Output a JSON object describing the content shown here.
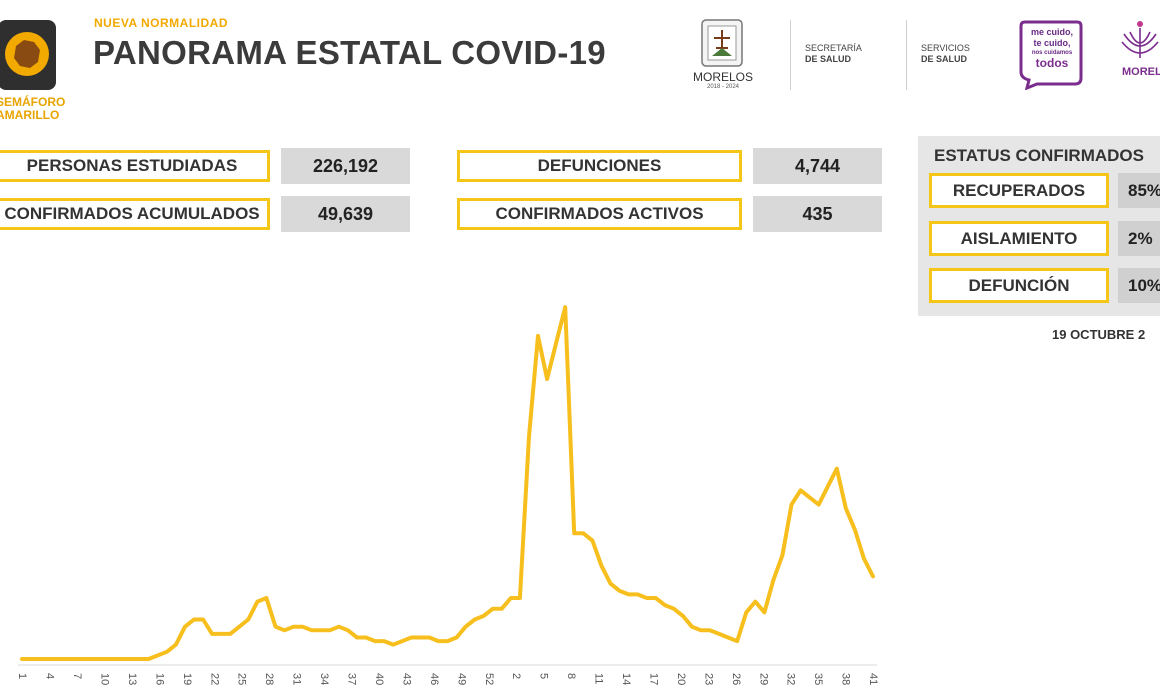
{
  "header": {
    "subtitle": "NUEVA NORMALIDAD",
    "title": "PANORAMA ESTATAL COVID-19"
  },
  "semaforo": {
    "line1": "SEMÁFORO",
    "line2": "AMARILLO",
    "color": "#f2a900"
  },
  "logos": {
    "morelos_name": "MORELOS",
    "morelos_years": "2018 - 2024",
    "secretaria_line1": "SECRETARÍA",
    "secretaria_line2": "DE SALUD",
    "servicios_line1": "SERVICIOS",
    "servicios_line2": "DE SALUD",
    "campaign_line1": "me cuido,",
    "campaign_line2": "te cuido,",
    "campaign_line3": "nos cuidamos",
    "campaign_line4": "todos",
    "morelos2_name": "MORELO"
  },
  "kpis": {
    "personas_estudiadas_label": "PERSONAS ESTUDIADAS",
    "personas_estudiadas_value": "226,192",
    "confirmados_acumulados_label": "CONFIRMADOS ACUMULADOS",
    "confirmados_acumulados_value": "49,639",
    "defunciones_label": "DEFUNCIONES",
    "defunciones_value": "4,744",
    "confirmados_activos_label": "CONFIRMADOS ACTIVOS",
    "confirmados_activos_value": "435"
  },
  "status": {
    "title": "ESTATUS CONFIRMADOS",
    "recuperados_label": "RECUPERADOS",
    "recuperados_value": "85%",
    "aislamiento_label": "AISLAMIENTO",
    "aislamiento_value": "2%",
    "defuncion_label": "DEFUNCIÓN",
    "defuncion_value": "10%"
  },
  "date": "19 OCTUBRE 2",
  "colors": {
    "accent": "#f5c518",
    "line": "#f7bf1d",
    "panel": "#e6e6e6",
    "value_box": "#d9d9d9"
  },
  "chart_data": {
    "type": "line",
    "title": "",
    "xlabel": "",
    "ylabel": "",
    "tick_labels": [
      "1",
      "4",
      "7",
      "10",
      "13",
      "16",
      "19",
      "22",
      "25",
      "28",
      "31",
      "34",
      "37",
      "40",
      "43",
      "46",
      "49",
      "52",
      "2",
      "5",
      "8",
      "11",
      "14",
      "17",
      "20",
      "23",
      "26",
      "29",
      "32",
      "35",
      "38",
      "41"
    ],
    "ylim": [
      0,
      100
    ],
    "grid": false,
    "legend": "none",
    "series": [
      {
        "values": [
          0,
          0,
          0,
          0,
          0,
          0,
          0,
          0,
          0,
          0,
          0,
          0,
          0,
          0,
          0,
          1,
          2,
          4,
          9,
          11,
          11,
          7,
          7,
          7,
          9,
          11,
          16,
          17,
          9,
          8,
          9,
          9,
          8,
          8,
          8,
          9,
          8,
          6,
          6,
          5,
          5,
          4,
          5,
          6,
          6,
          6,
          5,
          5,
          6,
          9,
          11,
          12,
          14,
          14,
          17,
          17,
          62,
          90,
          78,
          88,
          98,
          35,
          35,
          33,
          26,
          21,
          19,
          18,
          18,
          17,
          17,
          15,
          14,
          12,
          9,
          8,
          8,
          7,
          6,
          5,
          13,
          16,
          13,
          22,
          29,
          43,
          47,
          45,
          43,
          48,
          53,
          42,
          36,
          28,
          23
        ]
      }
    ]
  }
}
